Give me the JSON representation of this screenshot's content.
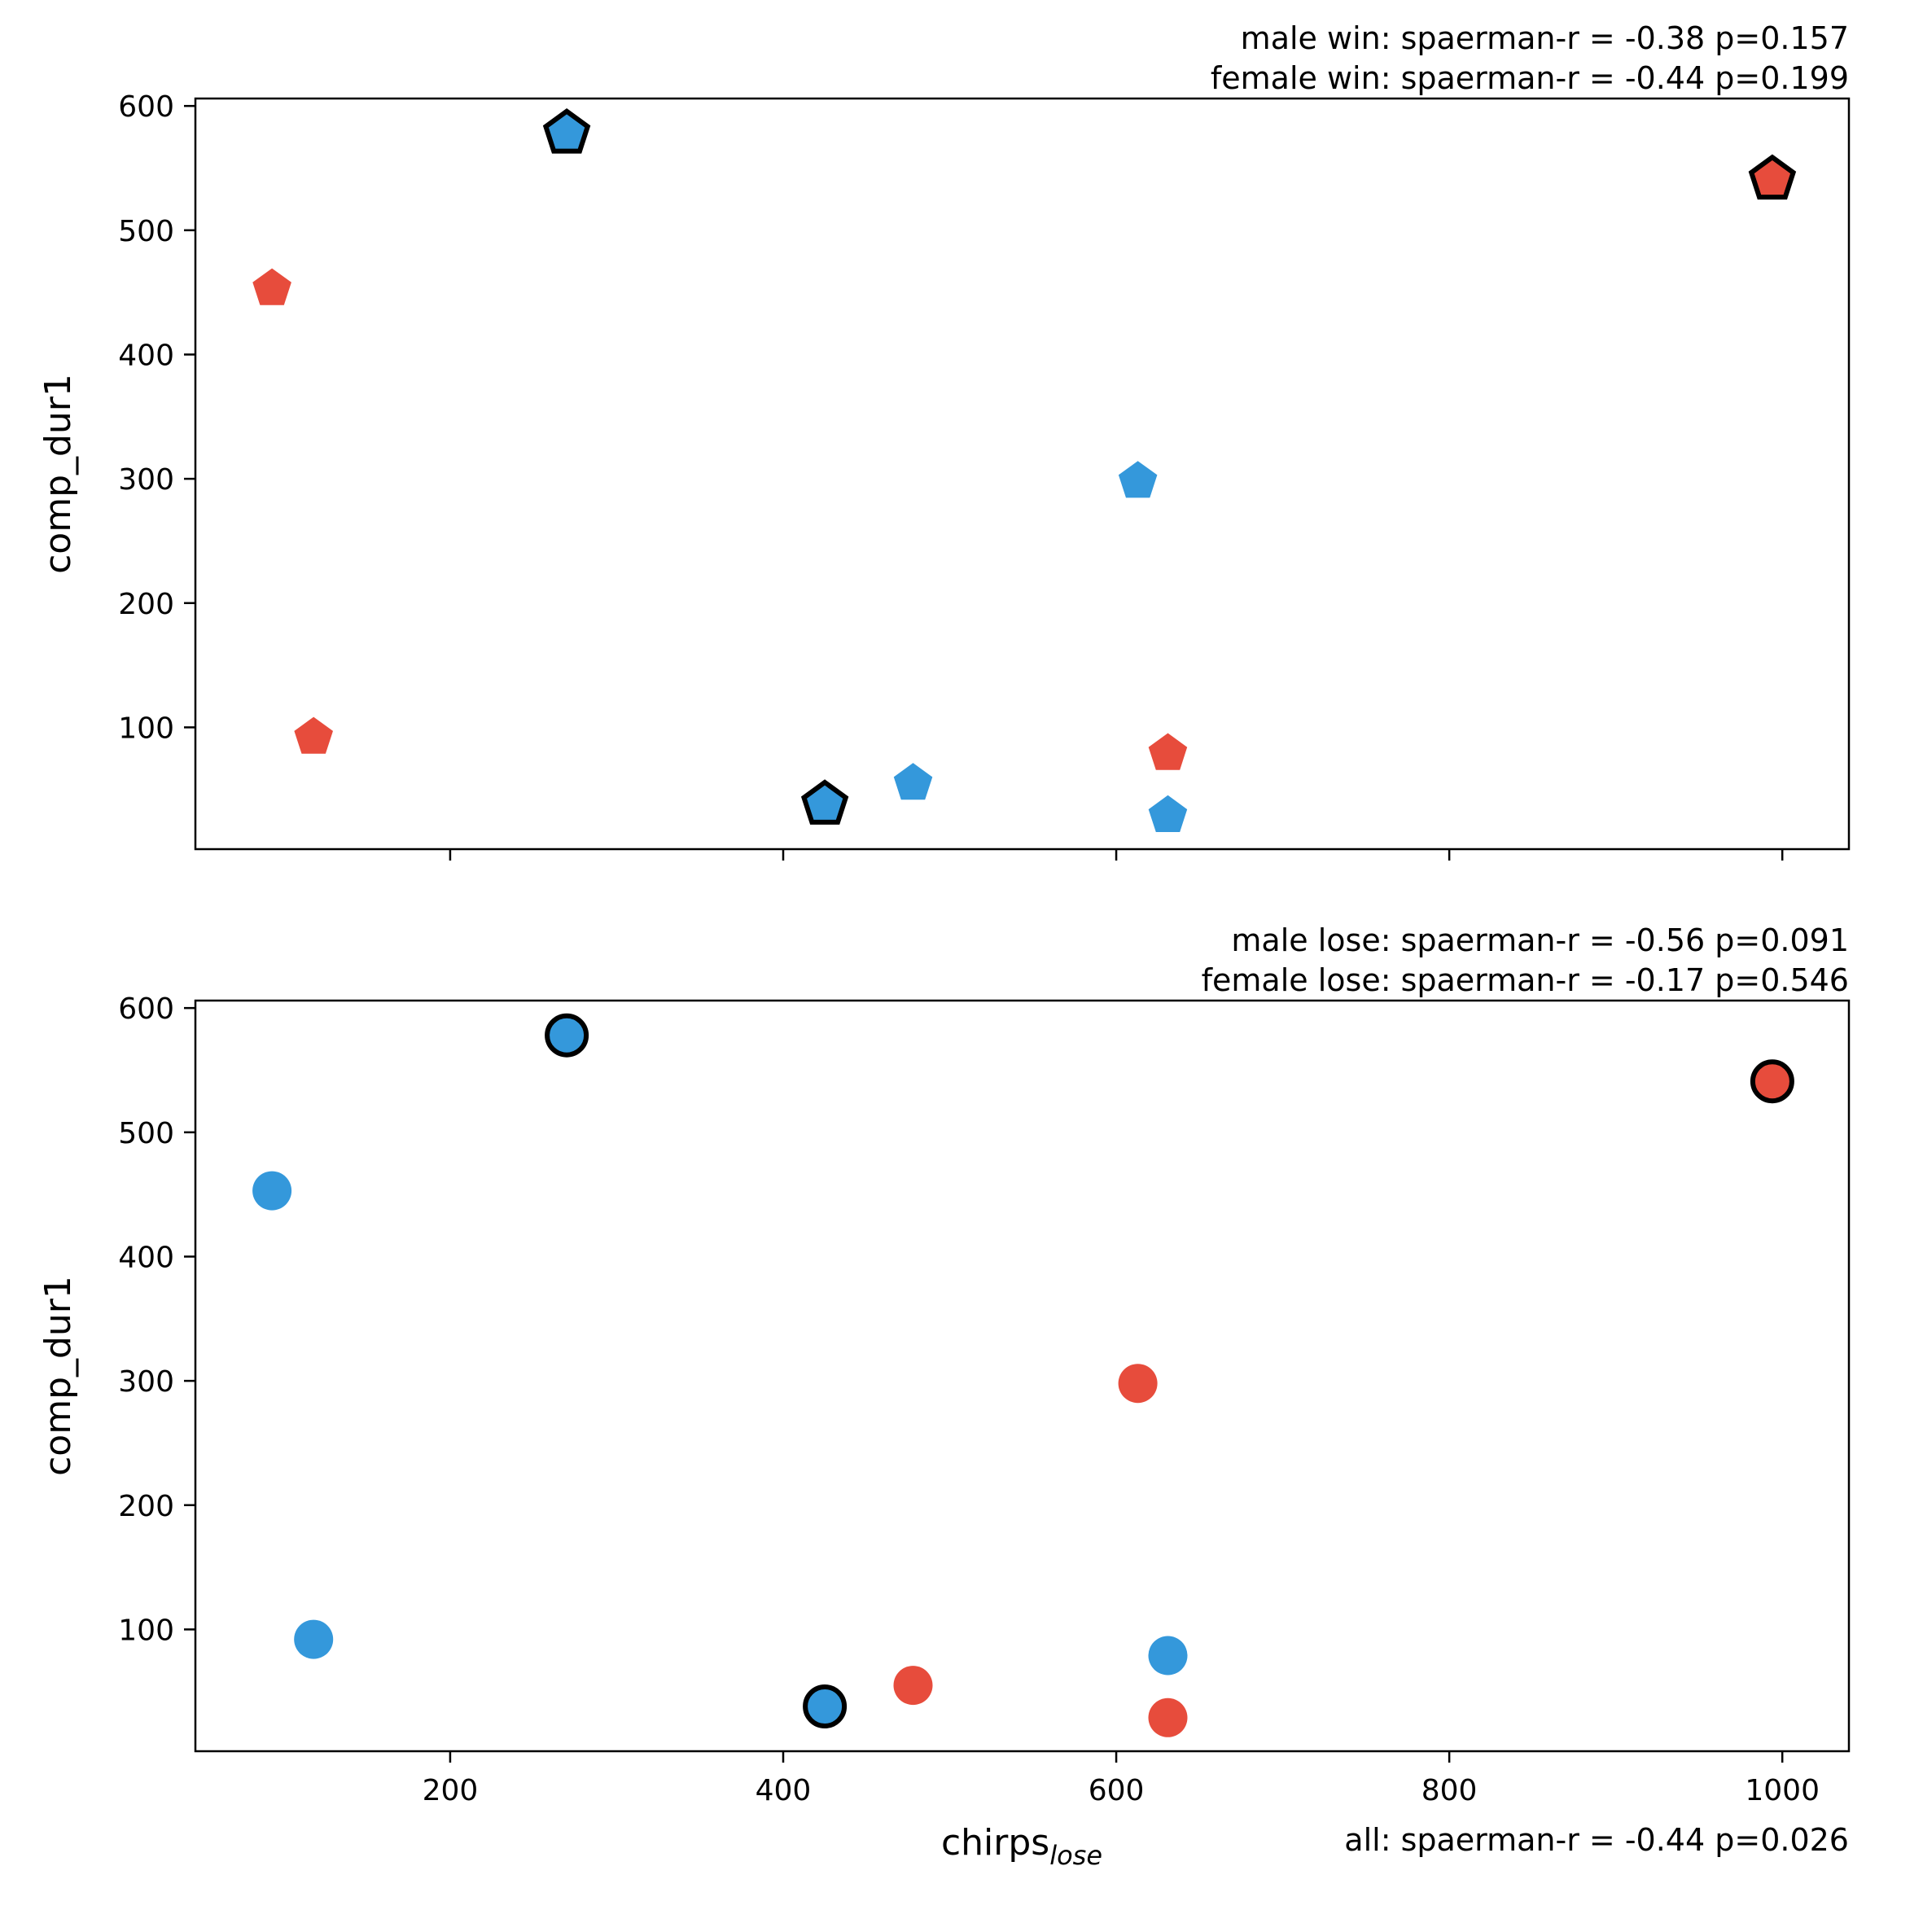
{
  "colors": {
    "male": "#3498db",
    "female": "#e74c3c",
    "outline": "#000000"
  },
  "chart_data": [
    {
      "type": "scatter",
      "marker": "pentagon",
      "title": "",
      "xlabel": "",
      "ylabel": "comp_dur1",
      "xlim": [
        47,
        1040
      ],
      "ylim": [
        2,
        606
      ],
      "x_ticks": [
        200,
        400,
        600,
        800,
        1000
      ],
      "y_ticks": [
        100,
        200,
        300,
        400,
        500,
        600
      ],
      "show_x_tick_labels": false,
      "grid": false,
      "annotations": [
        "male win: spaerman-r = -0.38 p=0.157",
        "female win: spaerman-r = -0.44 p=0.199"
      ],
      "points": [
        {
          "x": 270,
          "y": 578,
          "color": "#3498db",
          "outlined": true
        },
        {
          "x": 425,
          "y": 38,
          "color": "#3498db",
          "outlined": true
        },
        {
          "x": 478,
          "y": 55,
          "color": "#3498db",
          "outlined": false
        },
        {
          "x": 613,
          "y": 298,
          "color": "#3498db",
          "outlined": false
        },
        {
          "x": 631,
          "y": 29,
          "color": "#3498db",
          "outlined": false
        },
        {
          "x": 93,
          "y": 453,
          "color": "#e74c3c",
          "outlined": false
        },
        {
          "x": 118,
          "y": 92,
          "color": "#e74c3c",
          "outlined": false
        },
        {
          "x": 631,
          "y": 79,
          "color": "#e74c3c",
          "outlined": false
        },
        {
          "x": 994,
          "y": 541,
          "color": "#e74c3c",
          "outlined": true
        }
      ]
    },
    {
      "type": "scatter",
      "marker": "circle",
      "title": "",
      "xlabel": "chirps",
      "xlabel_subscript": "lose",
      "ylabel": "comp_dur1",
      "xlim": [
        47,
        1040
      ],
      "ylim": [
        2,
        606
      ],
      "x_ticks": [
        200,
        400,
        600,
        800,
        1000
      ],
      "y_ticks": [
        100,
        200,
        300,
        400,
        500,
        600
      ],
      "show_x_tick_labels": true,
      "grid": false,
      "annotations": [
        "male lose: spaerman-r = -0.56 p=0.091",
        "female lose: spaerman-r = -0.17 p=0.546"
      ],
      "footer_annotation": "all: spaerman-r = -0.44 p=0.026",
      "points": [
        {
          "x": 270,
          "y": 578,
          "color": "#3498db",
          "outlined": true
        },
        {
          "x": 93,
          "y": 453,
          "color": "#3498db",
          "outlined": false
        },
        {
          "x": 118,
          "y": 92,
          "color": "#3498db",
          "outlined": false
        },
        {
          "x": 425,
          "y": 38,
          "color": "#3498db",
          "outlined": true
        },
        {
          "x": 631,
          "y": 79,
          "color": "#3498db",
          "outlined": false
        },
        {
          "x": 478,
          "y": 55,
          "color": "#e74c3c",
          "outlined": false
        },
        {
          "x": 613,
          "y": 298,
          "color": "#e74c3c",
          "outlined": false
        },
        {
          "x": 631,
          "y": 29,
          "color": "#e74c3c",
          "outlined": false
        },
        {
          "x": 994,
          "y": 541,
          "color": "#e74c3c",
          "outlined": true
        }
      ]
    }
  ]
}
